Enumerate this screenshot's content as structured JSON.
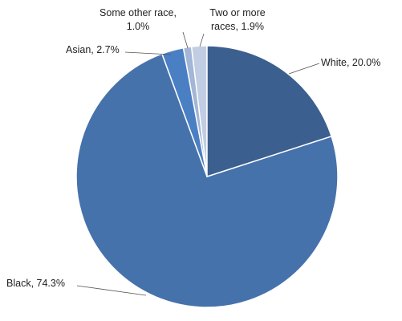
{
  "chart_data": {
    "type": "pie",
    "values": [
      20.0,
      74.3,
      2.7,
      1.0,
      1.9
    ],
    "value_labels": [
      "White, 20.0%",
      "Black, 74.3%",
      "Asian, 2.7%",
      "Some other race, 1.0%",
      "Two or more races, 1.9%"
    ],
    "colors": [
      "#3b5f8e",
      "#4672ac",
      "#4b7fc3",
      "#a3b6d6",
      "#c1cde2"
    ]
  }
}
